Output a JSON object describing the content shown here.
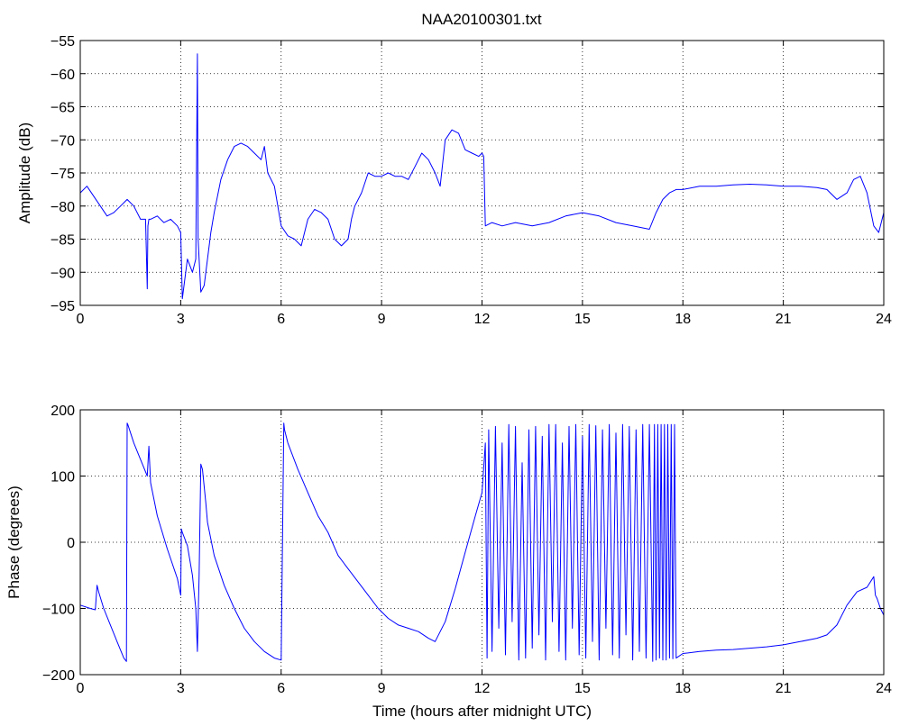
{
  "figure": {
    "title": "NAA20100301.txt"
  },
  "chart_data": [
    {
      "type": "line",
      "title": "NAA20100301.txt",
      "xlabel": "",
      "ylabel": "Amplitude (dB)",
      "xlim": [
        0,
        24
      ],
      "ylim": [
        -95,
        -55
      ],
      "xticks": [
        0,
        3,
        6,
        9,
        12,
        15,
        18,
        21,
        24
      ],
      "yticks": [
        -95,
        -90,
        -85,
        -80,
        -75,
        -70,
        -65,
        -60,
        -55
      ],
      "grid": true,
      "color": "#0000ff",
      "series": [
        {
          "x": [
            0.0,
            0.2,
            0.4,
            0.6,
            0.8,
            1.0,
            1.2,
            1.4,
            1.6,
            1.8,
            1.95,
            2.0,
            2.02,
            2.05,
            2.1,
            2.3,
            2.5,
            2.7,
            2.9,
            3.0,
            3.05,
            3.2,
            3.35,
            3.45,
            3.5,
            3.52,
            3.55,
            3.6,
            3.7,
            3.8,
            3.9,
            4.0,
            4.2,
            4.4,
            4.6,
            4.8,
            5.0,
            5.2,
            5.4,
            5.5,
            5.6,
            5.8,
            6.0,
            6.2,
            6.4,
            6.6,
            6.8,
            7.0,
            7.2,
            7.4,
            7.6,
            7.8,
            8.0,
            8.1,
            8.2,
            8.4,
            8.6,
            8.8,
            9.0,
            9.2,
            9.4,
            9.6,
            9.8,
            10.0,
            10.2,
            10.4,
            10.6,
            10.75,
            10.9,
            11.1,
            11.3,
            11.5,
            11.7,
            11.9,
            12.0,
            12.05,
            12.1,
            12.3,
            12.6,
            13.0,
            13.5,
            14.0,
            14.5,
            15.0,
            15.5,
            16.0,
            16.5,
            17.0,
            17.2,
            17.4,
            17.6,
            17.8,
            18.0,
            18.5,
            19.0,
            19.5,
            20.0,
            20.5,
            21.0,
            21.5,
            22.0,
            22.3,
            22.6,
            22.9,
            23.1,
            23.3,
            23.5,
            23.7,
            23.85,
            24.0
          ],
          "y": [
            -78,
            -77,
            -78.5,
            -80,
            -81.5,
            -81,
            -80,
            -79,
            -80,
            -82,
            -82,
            -92.5,
            -83,
            -82,
            -82,
            -81.5,
            -82.5,
            -82,
            -83,
            -84,
            -94,
            -88,
            -90,
            -88,
            -57,
            -85,
            -88,
            -93,
            -92,
            -88,
            -84,
            -81,
            -76,
            -73,
            -71,
            -70.5,
            -71,
            -72,
            -73,
            -71,
            -75,
            -77,
            -83,
            -84.5,
            -85,
            -86,
            -82,
            -80.5,
            -81,
            -82,
            -85,
            -86,
            -85,
            -82,
            -80,
            -78,
            -75,
            -75.5,
            -75.5,
            -75,
            -75.5,
            -75.5,
            -76,
            -74,
            -72,
            -73,
            -75,
            -77,
            -70,
            -68.5,
            -69,
            -71.5,
            -72,
            -72.5,
            -72,
            -72.5,
            -83,
            -82.5,
            -83,
            -82.5,
            -83,
            -82.5,
            -81.5,
            -81,
            -81.5,
            -82.5,
            -83,
            -83.5,
            -81,
            -79,
            -78,
            -77.5,
            -77.5,
            -77,
            -77,
            -76.8,
            -76.7,
            -76.8,
            -77,
            -77,
            -77.2,
            -77.5,
            -79,
            -78,
            -76,
            -75.5,
            -78,
            -83,
            -84,
            -81
          ]
        }
      ]
    },
    {
      "type": "line",
      "title": "",
      "xlabel": "Time (hours after midnight UTC)",
      "ylabel": "Phase (degrees)",
      "xlim": [
        0,
        24
      ],
      "ylim": [
        -200,
        200
      ],
      "xticks": [
        0,
        3,
        6,
        9,
        12,
        15,
        18,
        21,
        24
      ],
      "yticks": [
        -200,
        -100,
        0,
        100,
        200
      ],
      "grid": true,
      "color": "#0000ff",
      "series": [
        {
          "x": [
            0.0,
            0.3,
            0.45,
            0.5,
            0.55,
            0.7,
            0.9,
            1.1,
            1.3,
            1.38,
            1.4,
            1.42,
            1.6,
            1.8,
            2.0,
            2.05,
            2.1,
            2.3,
            2.6,
            2.9,
            3.0,
            3.02,
            3.05,
            3.2,
            3.35,
            3.45,
            3.5,
            3.55,
            3.6,
            3.65,
            3.75,
            3.8,
            4.0,
            4.3,
            4.6,
            4.9,
            5.2,
            5.5,
            5.8,
            6.0,
            6.08,
            6.1,
            6.2,
            6.5,
            6.8,
            7.1,
            7.4,
            7.7,
            8.0,
            8.3,
            8.6,
            8.9,
            9.2,
            9.5,
            9.8,
            10.1,
            10.4,
            10.6,
            10.75,
            10.9,
            11.2,
            11.5,
            11.8,
            12.0,
            12.1,
            12.15,
            12.2,
            12.3,
            12.4,
            12.5,
            12.6,
            12.7,
            12.8,
            12.9,
            13.0,
            13.1,
            13.2,
            13.3,
            13.4,
            13.5,
            13.6,
            13.7,
            13.8,
            13.9,
            14.0,
            14.1,
            14.2,
            14.3,
            14.4,
            14.5,
            14.6,
            14.7,
            14.8,
            14.9,
            15.0,
            15.1,
            15.2,
            15.3,
            15.4,
            15.5,
            15.6,
            15.7,
            15.8,
            15.9,
            16.0,
            16.1,
            16.2,
            16.3,
            16.4,
            16.5,
            16.6,
            16.7,
            16.8,
            16.9,
            17.0,
            17.1,
            17.15,
            17.2,
            17.25,
            17.3,
            17.35,
            17.4,
            17.45,
            17.5,
            17.55,
            17.6,
            17.65,
            17.7,
            17.75,
            17.8,
            18.0,
            18.5,
            19.0,
            19.5,
            20.0,
            20.5,
            21.0,
            21.5,
            22.0,
            22.3,
            22.6,
            22.9,
            23.2,
            23.5,
            23.7,
            23.75,
            23.8,
            23.9,
            24.0
          ],
          "y": [
            -95,
            -100,
            -102,
            -65,
            -75,
            -100,
            -125,
            -150,
            -175,
            -180,
            180,
            178,
            150,
            125,
            100,
            145,
            90,
            40,
            -10,
            -55,
            -80,
            20,
            15,
            -5,
            -50,
            -100,
            -165,
            -50,
            118,
            110,
            60,
            30,
            -20,
            -65,
            -100,
            -130,
            -150,
            -165,
            -175,
            -178,
            180,
            170,
            150,
            110,
            75,
            40,
            15,
            -20,
            -40,
            -60,
            -80,
            -100,
            -115,
            -125,
            -130,
            -135,
            -145,
            -150,
            -135,
            -120,
            -70,
            -15,
            40,
            75,
            150,
            -175,
            170,
            -165,
            175,
            -130,
            150,
            -170,
            178,
            -120,
            175,
            -178,
            120,
            -175,
            170,
            -160,
            175,
            -140,
            160,
            -178,
            178,
            -120,
            178,
            -165,
            150,
            -178,
            175,
            -130,
            178,
            -170,
            160,
            -175,
            178,
            -150,
            176,
            -178,
            170,
            -130,
            178,
            -170,
            165,
            -175,
            178,
            -140,
            175,
            -178,
            170,
            -165,
            178,
            -175,
            178,
            -180,
            178,
            -178,
            178,
            -175,
            178,
            -178,
            178,
            -178,
            178,
            -175,
            178,
            -176,
            178,
            -175,
            -168,
            -165,
            -163,
            -162,
            -160,
            -158,
            -155,
            -150,
            -145,
            -140,
            -125,
            -95,
            -75,
            -68,
            -52,
            -80,
            -85,
            -100,
            -110
          ]
        }
      ]
    }
  ]
}
